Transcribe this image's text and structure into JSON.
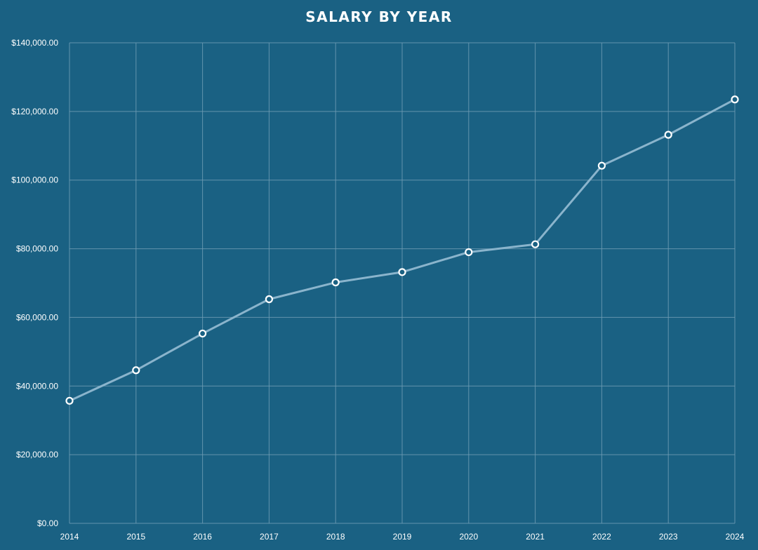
{
  "chart_data": {
    "type": "line",
    "title": "SALARY BY YEAR",
    "xlabel": "",
    "ylabel": "",
    "categories": [
      "2014",
      "2015",
      "2016",
      "2017",
      "2018",
      "2019",
      "2020",
      "2021",
      "2022",
      "2023",
      "2024"
    ],
    "series": [
      {
        "values": [
          35700,
          44600,
          55300,
          65300,
          70200,
          73200,
          79000,
          81300,
          104200,
          113200,
          123500
        ]
      }
    ],
    "ylim": [
      0,
      140000
    ],
    "yticks": [
      0,
      20000,
      40000,
      60000,
      80000,
      100000,
      120000,
      140000
    ],
    "ytick_labels": [
      "$0.00",
      "$20,000.00",
      "$40,000.00",
      "$60,000.00",
      "$80,000.00",
      "$100,000.00",
      "$120,000.00",
      "$140,000.00"
    ],
    "grid": true,
    "legend": "none",
    "colors": {
      "background": "#1a6183",
      "line": "#8ab4cc",
      "marker_fill": "#1a6183",
      "marker_stroke": "#ffffff",
      "grid": "#6f9cb4",
      "text": "#ffffff"
    }
  }
}
